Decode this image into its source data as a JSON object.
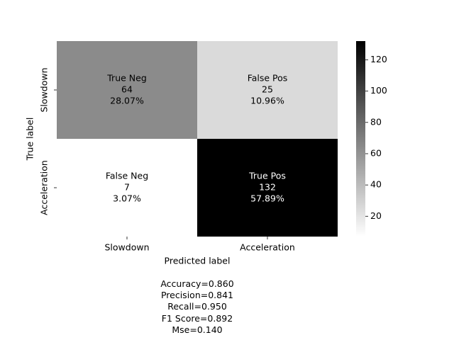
{
  "chart_data": {
    "type": "heatmap",
    "xlabel": "Predicted label",
    "ylabel": "True label",
    "x_categories": [
      "Slowdown",
      "Acceleration"
    ],
    "y_categories": [
      "Slowdown",
      "Acceleration"
    ],
    "cells": [
      [
        {
          "label": "True Neg",
          "value": 64,
          "percent": "28.07%"
        },
        {
          "label": "False Pos",
          "value": 25,
          "percent": "10.96%"
        }
      ],
      [
        {
          "label": "False Neg",
          "value": 7,
          "percent": "3.07%"
        },
        {
          "label": "True Pos",
          "value": 132,
          "percent": "57.89%"
        }
      ]
    ],
    "colormap": "Greys",
    "colorbar": {
      "range": [
        7,
        132
      ],
      "ticks": [
        20,
        40,
        60,
        80,
        100,
        120
      ]
    }
  },
  "metrics": [
    "Accuracy=0.860",
    "Precision=0.841",
    "Recall=0.950",
    "F1 Score=0.892",
    "Mse=0.140"
  ]
}
